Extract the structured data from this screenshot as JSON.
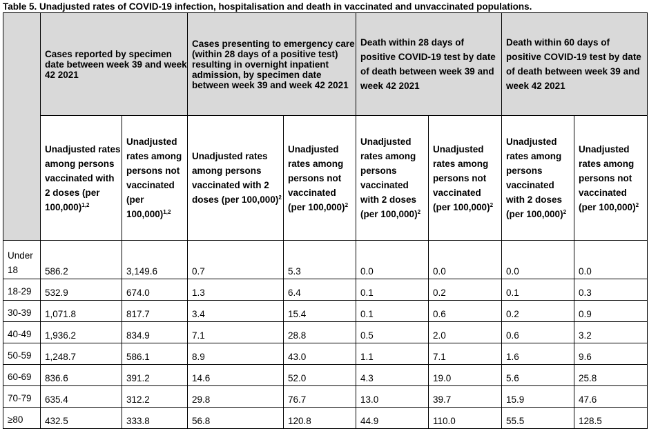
{
  "title": "Table 5. Unadjusted rates of COVID-19 infection, hospitalisation and death in vaccinated and unvaccinated populations.",
  "groups": [
    "Cases reported by specimen date between week 39 and week 42 2021",
    "Cases presenting to emergency care (within 28 days of a positive test) resulting in overnight inpatient admission, by specimen date between week 39 and week 42 2021",
    "Death within 28 days of positive COVID-19 test by date of death between week 39 and week 42 2021",
    "Death within 60 days of positive COVID-19 test by date of death between week 39 and week 42 2021"
  ],
  "subheaders": [
    {
      "text": "Unadjusted rates among persons vaccinated with 2 doses (per 100,000)",
      "sup": "1,2"
    },
    {
      "text": "Unadjusted rates among persons not vaccinated (per 100,000)",
      "sup": "1,2"
    },
    {
      "text": "Unadjusted rates among persons vaccinated with 2 doses (per 100,000)",
      "sup": "2"
    },
    {
      "text": "Unadjusted rates among persons not vaccinated (per 100,000)",
      "sup": "2"
    },
    {
      "text": "Unadjusted rates among persons vaccinated with 2 doses (per 100,000)",
      "sup": "2"
    },
    {
      "text": "Unadjusted rates among persons not vaccinated (per 100,000)",
      "sup": "2"
    },
    {
      "text": "Unadjusted rates among persons vaccinated with 2 doses (per 100,000)",
      "sup": "2"
    },
    {
      "text": "Unadjusted rates among persons not vaccinated (per 100,000)",
      "sup": "2"
    }
  ],
  "rows": [
    {
      "age": "Under 18",
      "values": [
        "586.2",
        "3,149.6",
        "0.7",
        "5.3",
        "0.0",
        "0.0",
        "0.0",
        "0.0"
      ]
    },
    {
      "age": "18-29",
      "values": [
        "532.9",
        "674.0",
        "1.3",
        "6.4",
        "0.1",
        "0.2",
        "0.1",
        "0.3"
      ]
    },
    {
      "age": "30-39",
      "values": [
        "1,071.8",
        "817.7",
        "3.4",
        "15.4",
        "0.1",
        "0.6",
        "0.2",
        "0.9"
      ]
    },
    {
      "age": "40-49",
      "values": [
        "1,936.2",
        "834.9",
        "7.1",
        "28.8",
        "0.5",
        "2.0",
        "0.6",
        "3.2"
      ]
    },
    {
      "age": "50-59",
      "values": [
        "1,248.7",
        "586.1",
        "8.9",
        "43.0",
        "1.1",
        "7.1",
        "1.6",
        "9.6"
      ]
    },
    {
      "age": "60-69",
      "values": [
        "836.6",
        "391.2",
        "14.6",
        "52.0",
        "4.3",
        "19.0",
        "5.6",
        "25.8"
      ]
    },
    {
      "age": "70-79",
      "values": [
        "635.4",
        "312.2",
        "29.8",
        "76.7",
        "13.0",
        "39.7",
        "15.9",
        "47.6"
      ]
    },
    {
      "age": "≥80",
      "values": [
        "432.5",
        "333.8",
        "56.8",
        "120.8",
        "44.9",
        "110.0",
        "55.5",
        "128.5"
      ]
    }
  ]
}
